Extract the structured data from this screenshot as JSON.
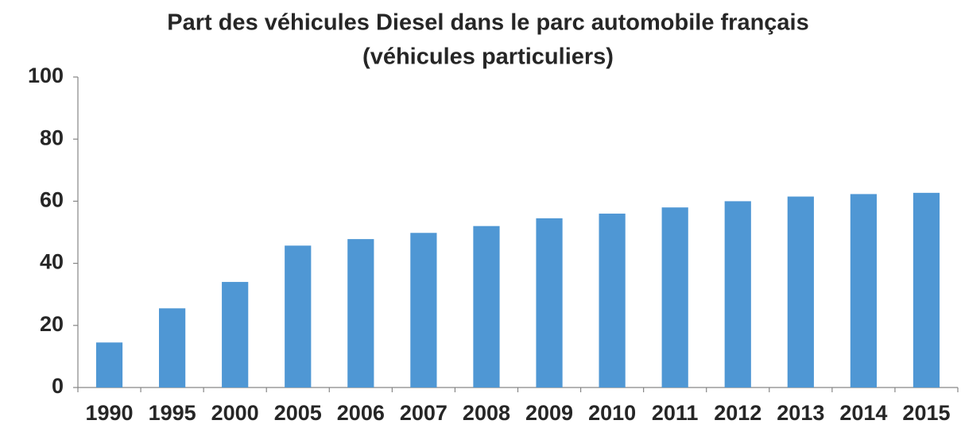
{
  "chart_data": {
    "type": "bar",
    "title": [
      "Part des véhicules Diesel dans le parc automobile français",
      "(véhicules particuliers)"
    ],
    "categories": [
      "1990",
      "1995",
      "2000",
      "2005",
      "2006",
      "2007",
      "2008",
      "2009",
      "2010",
      "2011",
      "2012",
      "2013",
      "2014",
      "2015"
    ],
    "values": [
      14.5,
      25.5,
      34,
      45.7,
      47.8,
      49.8,
      52,
      54.5,
      56,
      58,
      60,
      61.5,
      62.3,
      62.7
    ],
    "color": "#4f97d4",
    "ylim": [
      0,
      100
    ],
    "yticks": [
      0,
      20,
      40,
      60,
      80,
      100
    ],
    "grid": false
  }
}
